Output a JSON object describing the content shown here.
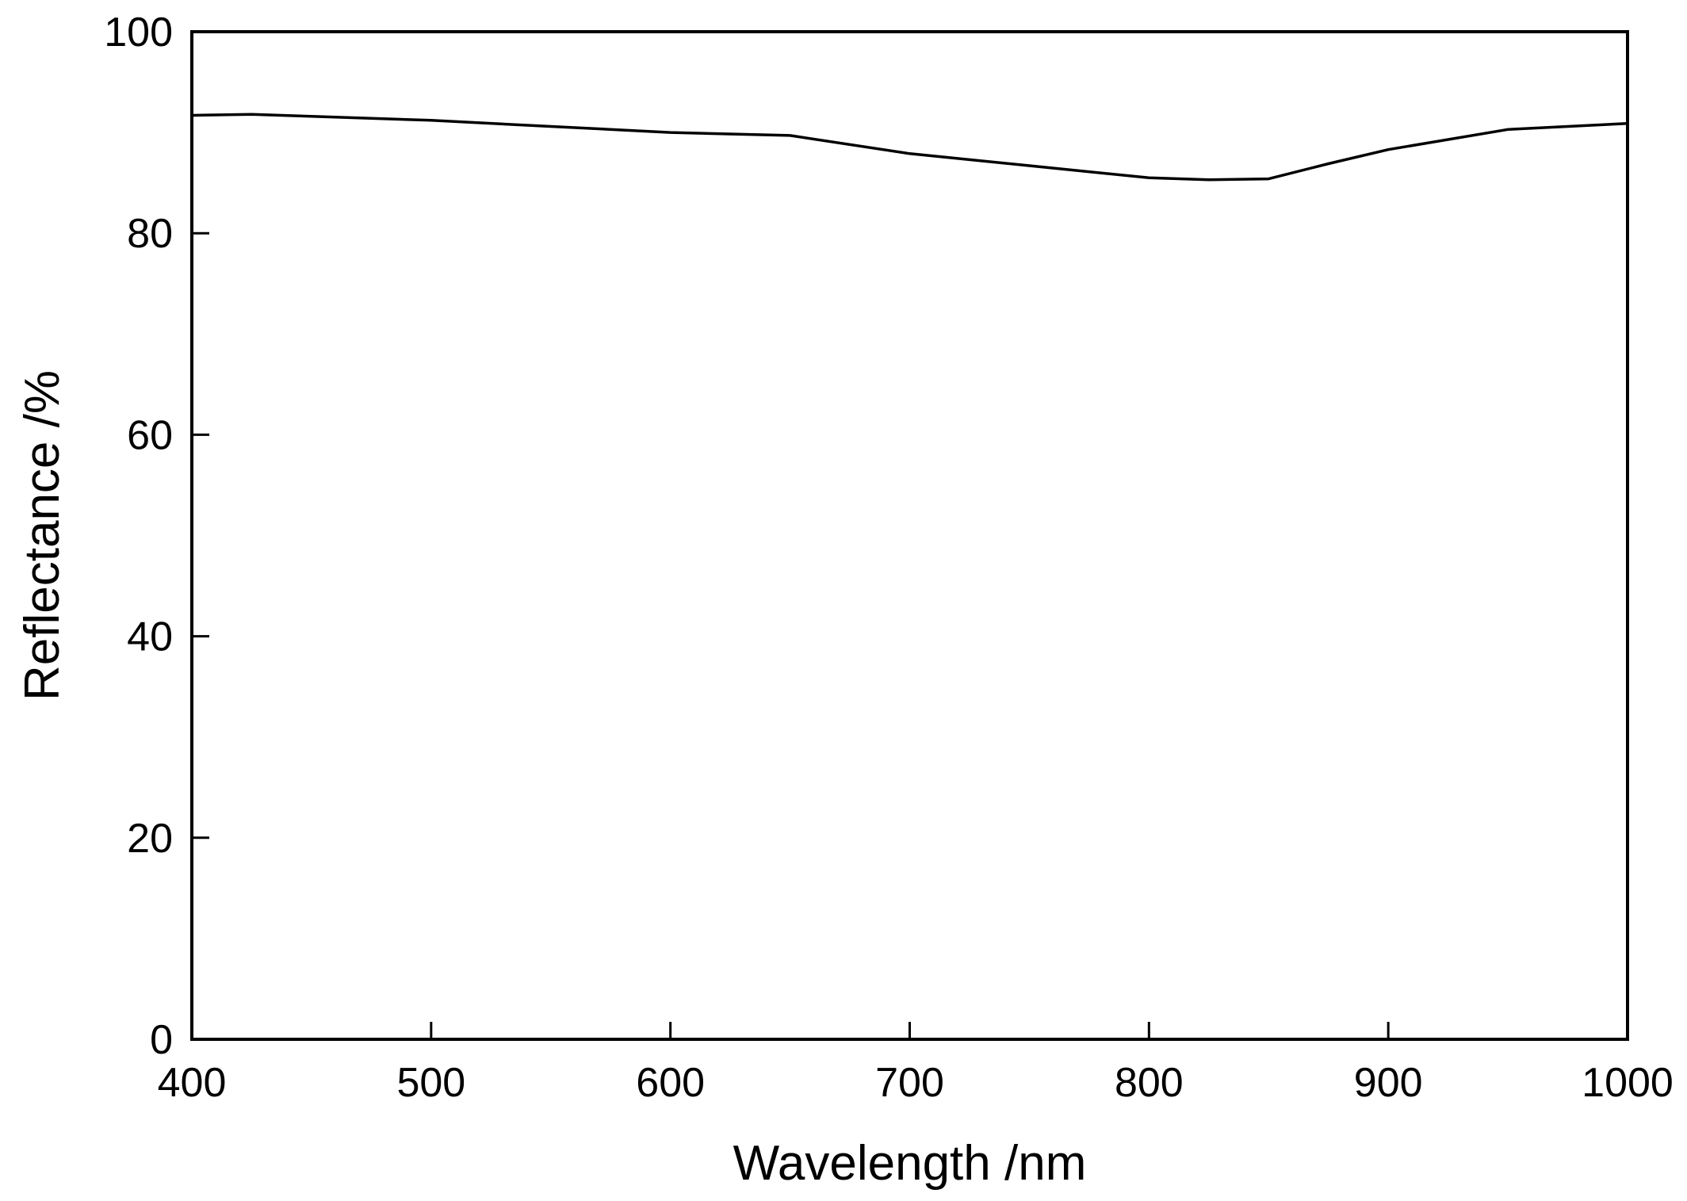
{
  "chart_data": {
    "type": "line",
    "title": "",
    "xlabel": "Wavelength /nm",
    "ylabel": "Reflectance /%",
    "xlim": [
      400,
      1000
    ],
    "ylim": [
      0,
      100
    ],
    "x_ticks": [
      400,
      500,
      600,
      700,
      800,
      900,
      1000
    ],
    "y_ticks": [
      0,
      20,
      40,
      60,
      80,
      100
    ],
    "grid": false,
    "legend": "none",
    "series": [
      {
        "color": "#000000",
        "x": [
          400,
          425,
          450,
          500,
          550,
          600,
          650,
          700,
          750,
          800,
          825,
          850,
          875,
          900,
          950,
          1000
        ],
        "y": [
          91.7,
          91.8,
          91.6,
          91.2,
          90.6,
          90.0,
          89.7,
          87.9,
          86.7,
          85.5,
          85.3,
          85.4,
          86.9,
          88.3,
          90.3,
          90.9
        ]
      }
    ]
  }
}
